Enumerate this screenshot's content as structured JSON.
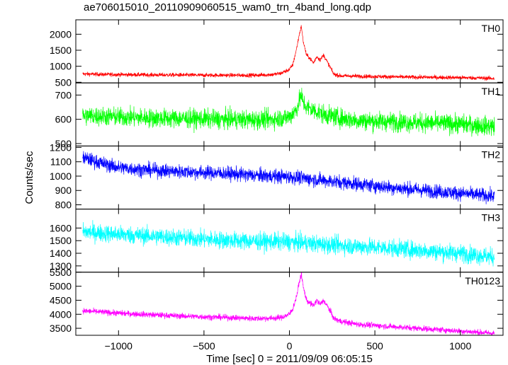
{
  "title": "ae706015010_20110909060515_wam0_trn_4band_long.qdp",
  "chart_data": {
    "type": "line",
    "title": "ae706015010_20110909060515_wam0_trn_4band_long.qdp",
    "xlabel": "Time [sec] 0 = 2011/09/09 06:05:15",
    "ylabel": "Counts/sec",
    "xlim": [
      -1250,
      1250
    ],
    "xticks": [
      -1000,
      -500,
      0,
      500,
      1000
    ],
    "xtick_labels": [
      "−1000",
      "−500",
      "0",
      "500",
      "1000"
    ],
    "grid": false,
    "panels": [
      {
        "name": "TH0",
        "color": "#ff0000",
        "ylim": [
          480,
          2450
        ],
        "yticks": [
          500,
          1000,
          1500,
          2000
        ],
        "ytick_labels": [
          "500",
          "1000",
          "1500",
          "2000"
        ],
        "x": [
          -1210,
          -1100,
          -1000,
          -900,
          -800,
          -700,
          -600,
          -500,
          -400,
          -300,
          -200,
          -100,
          -50,
          0,
          20,
          40,
          60,
          70,
          80,
          100,
          120,
          140,
          160,
          180,
          200,
          220,
          240,
          260,
          300,
          400,
          500,
          600,
          700,
          800,
          900,
          1000,
          1100,
          1200
        ],
        "y": [
          760,
          745,
          740,
          735,
          730,
          728,
          725,
          720,
          720,
          718,
          720,
          740,
          780,
          900,
          1050,
          1500,
          2050,
          2250,
          1800,
          1350,
          1250,
          1100,
          1300,
          1200,
          1350,
          1150,
          950,
          750,
          700,
          690,
          680,
          670,
          660,
          655,
          650,
          645,
          635,
          620
        ],
        "noise": 45
      },
      {
        "name": "TH1",
        "color": "#00ff00",
        "ylim": [
          490,
          750
        ],
        "yticks": [
          500,
          600,
          700
        ],
        "ytick_labels": [
          "500",
          "600",
          "700"
        ],
        "x": [
          -1210,
          -1000,
          -800,
          -600,
          -400,
          -200,
          -100,
          0,
          40,
          60,
          70,
          80,
          100,
          150,
          200,
          300,
          400,
          600,
          800,
          1000,
          1200
        ],
        "y": [
          615,
          610,
          605,
          603,
          600,
          598,
          600,
          610,
          640,
          680,
          700,
          670,
          650,
          635,
          620,
          605,
          595,
          590,
          585,
          580,
          570
        ],
        "noise": 28
      },
      {
        "name": "TH2",
        "color": "#0000ff",
        "ylim": [
          770,
          1210
        ],
        "yticks": [
          800,
          900,
          1000,
          1100,
          1200
        ],
        "ytick_labels": [
          "800",
          "900",
          "1000",
          "1100",
          "1200"
        ],
        "x": [
          -1210,
          -1100,
          -1000,
          -800,
          -600,
          -400,
          -200,
          0,
          200,
          400,
          600,
          800,
          1000,
          1200
        ],
        "y": [
          1130,
          1090,
          1060,
          1040,
          1030,
          1020,
          1005,
          995,
          970,
          945,
          920,
          900,
          880,
          860
        ],
        "noise": 35
      },
      {
        "name": "TH3",
        "color": "#00ffff",
        "ylim": [
          1250,
          1750
        ],
        "yticks": [
          1300,
          1400,
          1500,
          1600
        ],
        "ytick_labels": [
          "1300",
          "1400",
          "1500",
          "1600"
        ],
        "x": [
          -1210,
          -1000,
          -800,
          -600,
          -400,
          -200,
          0,
          200,
          400,
          600,
          800,
          1000,
          1200
        ],
        "y": [
          1570,
          1550,
          1535,
          1520,
          1505,
          1495,
          1490,
          1470,
          1455,
          1440,
          1420,
          1400,
          1370
        ],
        "noise": 50
      },
      {
        "name": "TH0123",
        "color": "#ff00ff",
        "ylim": [
          3250,
          5500
        ],
        "yticks": [
          3500,
          4000,
          4500,
          5000,
          5500
        ],
        "ytick_labels": [
          "3500",
          "4000",
          "4500",
          "5000",
          "5500"
        ],
        "x": [
          -1210,
          -1100,
          -1000,
          -800,
          -600,
          -400,
          -200,
          -100,
          -50,
          0,
          20,
          40,
          60,
          70,
          80,
          100,
          120,
          140,
          160,
          180,
          200,
          220,
          240,
          260,
          300,
          400,
          600,
          800,
          1000,
          1200
        ],
        "y": [
          4120,
          4080,
          4040,
          3980,
          3930,
          3890,
          3850,
          3860,
          3880,
          4000,
          4200,
          4600,
          5200,
          5450,
          5000,
          4500,
          4400,
          4300,
          4500,
          4350,
          4500,
          4300,
          4100,
          3850,
          3750,
          3640,
          3560,
          3480,
          3400,
          3320
        ],
        "noise": 75
      }
    ]
  }
}
